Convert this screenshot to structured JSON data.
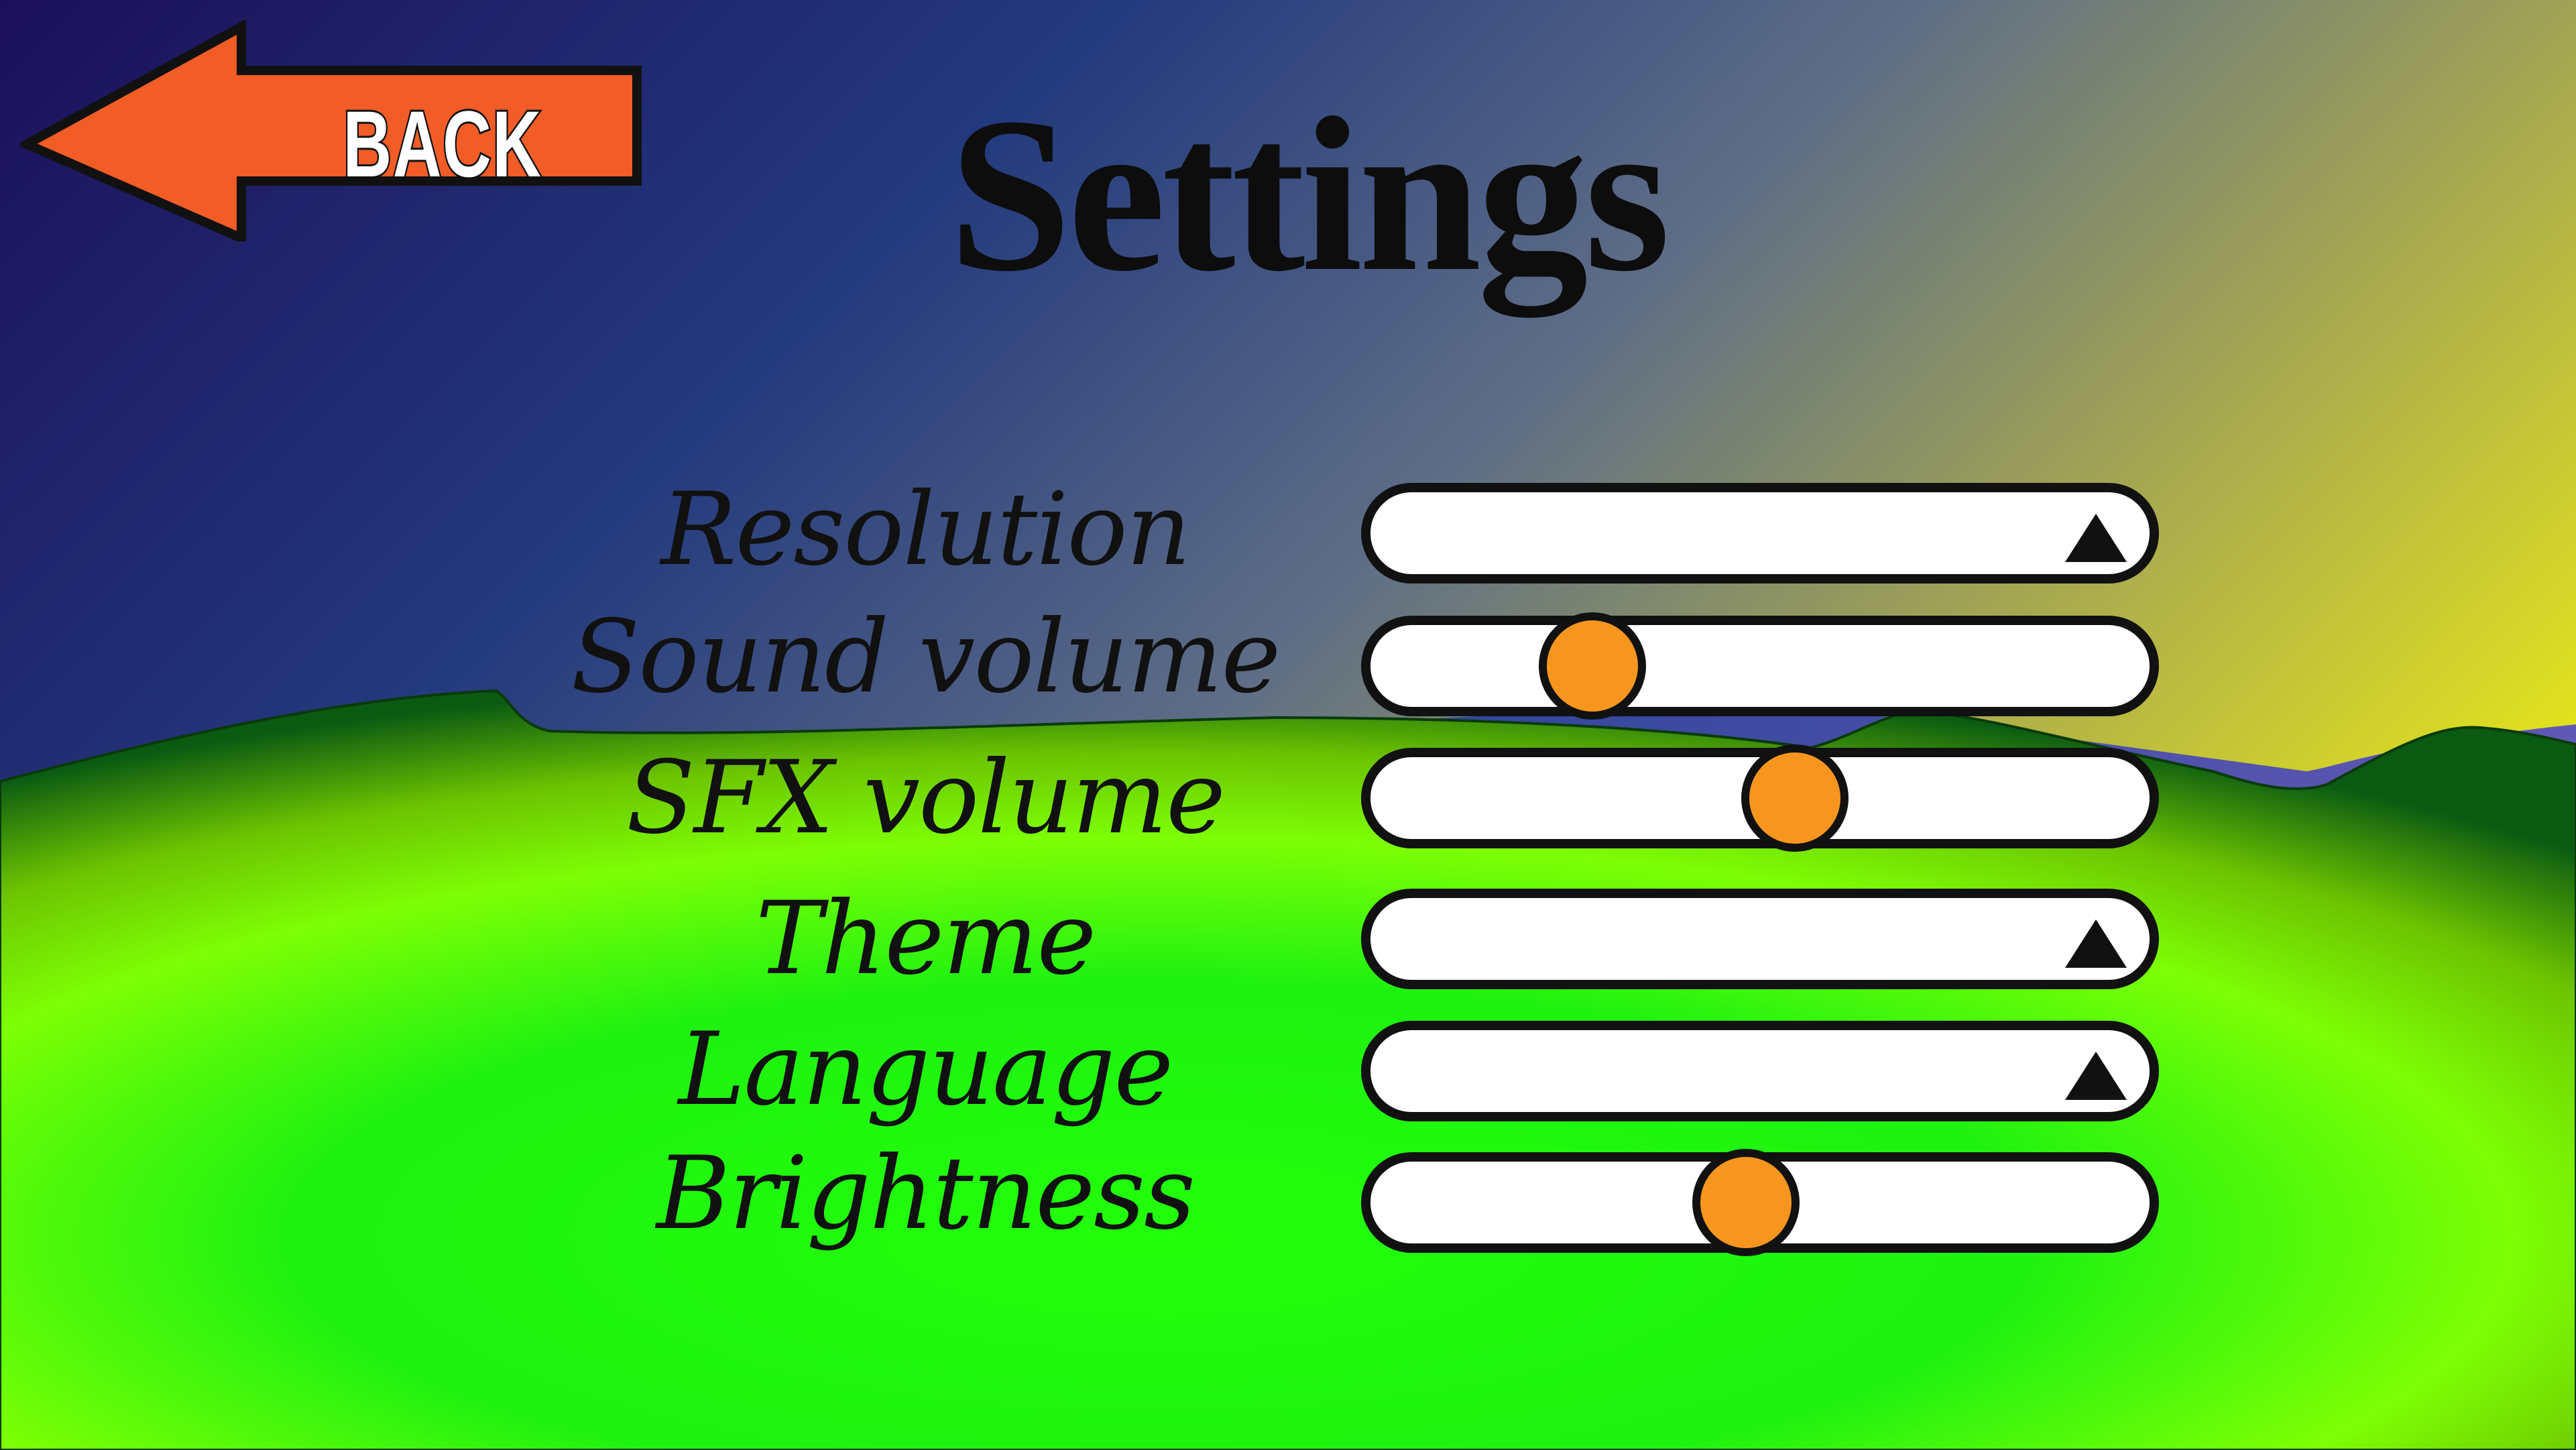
{
  "screen": {
    "title": "Settings",
    "back_button": {
      "label": "BACK"
    }
  },
  "colors": {
    "back_button_fill": "#f25c26",
    "slider_knob": "#f6961f",
    "sky_top_left": "#1c0f5a",
    "sky_top_right": "#ffff00",
    "grass": "#22ff0a"
  },
  "settings": [
    {
      "key": "resolution",
      "label": "Resolution",
      "control": "dropdown",
      "icon": "triangle-up-icon"
    },
    {
      "key": "sound_volume",
      "label": "Sound volume",
      "control": "slider",
      "value": 0.26
    },
    {
      "key": "sfx_volume",
      "label": "SFX volume",
      "control": "slider",
      "value": 0.55
    },
    {
      "key": "theme",
      "label": "Theme",
      "control": "dropdown",
      "icon": "triangle-up-icon"
    },
    {
      "key": "language",
      "label": "Language",
      "control": "dropdown",
      "icon": "triangle-up-icon"
    },
    {
      "key": "brightness",
      "label": "Brightness",
      "control": "slider",
      "value": 0.48
    }
  ]
}
